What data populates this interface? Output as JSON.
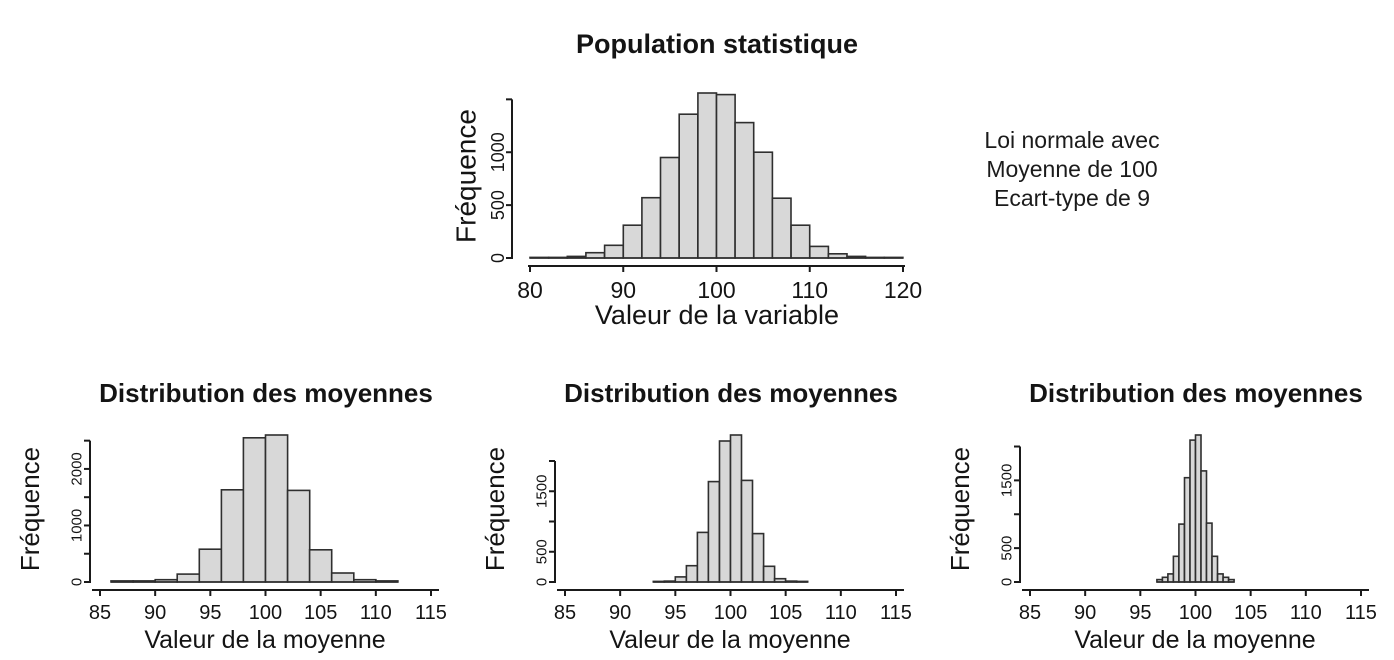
{
  "page": {
    "background": "#ffffff"
  },
  "annotation": {
    "lines": [
      "Loi normale avec",
      "Moyenne de 100",
      "Ecart-type de 9"
    ]
  },
  "colors": {
    "bar_fill": "#d8d8d8",
    "bar_stroke": "#2f2f2f",
    "axis": "#1a1a1a",
    "text": "#141414",
    "background": "#ffffff"
  },
  "chart_data": [
    {
      "type": "bar",
      "subtype": "histogram",
      "title": "Population statistique",
      "xlabel": "Valeur de la variable",
      "ylabel": "Fréquence",
      "x_ticks": [
        80,
        90,
        100,
        110,
        120
      ],
      "xlim": [
        80,
        120
      ],
      "y_ticks": [
        0,
        500,
        1000,
        1500
      ],
      "y_tick_labels": [
        "0",
        "500",
        "1000",
        ""
      ],
      "ylim": [
        0,
        1600
      ],
      "grid": false,
      "legend": "none",
      "bin_start": 80,
      "bin_width": 2,
      "values": [
        2,
        5,
        15,
        50,
        120,
        310,
        570,
        950,
        1360,
        1560,
        1545,
        1280,
        1000,
        565,
        310,
        110,
        40,
        15,
        6,
        3
      ]
    },
    {
      "type": "bar",
      "subtype": "histogram",
      "title": "Distribution des moyennes",
      "xlabel": "Valeur de la moyenne",
      "ylabel": "Fréquence",
      "x_ticks": [
        85,
        90,
        95,
        100,
        105,
        110,
        115
      ],
      "xlim": [
        85,
        115
      ],
      "y_ticks": [
        0,
        500,
        1000,
        1500,
        2000,
        2500
      ],
      "y_tick_labels": [
        "0",
        "",
        "1000",
        "",
        "2000",
        ""
      ],
      "ylim": [
        0,
        2650
      ],
      "grid": false,
      "legend": "none",
      "bin_start": 86,
      "bin_width": 2,
      "values": [
        20,
        20,
        40,
        140,
        580,
        1630,
        2550,
        2600,
        1620,
        570,
        160,
        40,
        20
      ]
    },
    {
      "type": "bar",
      "subtype": "histogram",
      "title": "Distribution des moyennes",
      "xlabel": "Valeur de la moyenne",
      "ylabel": "Fréquence",
      "x_ticks": [
        85,
        90,
        95,
        100,
        105,
        110,
        115
      ],
      "xlim": [
        85,
        115
      ],
      "y_ticks": [
        0,
        500,
        1000,
        1500,
        2000
      ],
      "y_tick_labels": [
        "0",
        "500",
        "",
        "1500",
        ""
      ],
      "ylim": [
        0,
        2450
      ],
      "grid": false,
      "legend": "none",
      "bin_start": 93,
      "bin_width": 1,
      "values": [
        10,
        15,
        85,
        270,
        820,
        1660,
        2330,
        2430,
        1680,
        800,
        260,
        55,
        15,
        8
      ]
    },
    {
      "type": "bar",
      "subtype": "histogram",
      "title": "Distribution des moyennes",
      "xlabel": "Valeur de la moyenne",
      "ylabel": "Fréquence",
      "x_ticks": [
        85,
        90,
        95,
        100,
        105,
        110,
        115
      ],
      "xlim": [
        85,
        115
      ],
      "y_ticks": [
        0,
        500,
        1000,
        1500,
        2000
      ],
      "y_tick_labels": [
        "0",
        "500",
        "",
        "1500",
        ""
      ],
      "ylim": [
        0,
        2200
      ],
      "grid": false,
      "legend": "none",
      "bin_start": 96.5,
      "bin_width": 0.5,
      "values": [
        35,
        70,
        120,
        380,
        855,
        1540,
        2095,
        2170,
        1640,
        870,
        380,
        120,
        70,
        35
      ]
    }
  ]
}
